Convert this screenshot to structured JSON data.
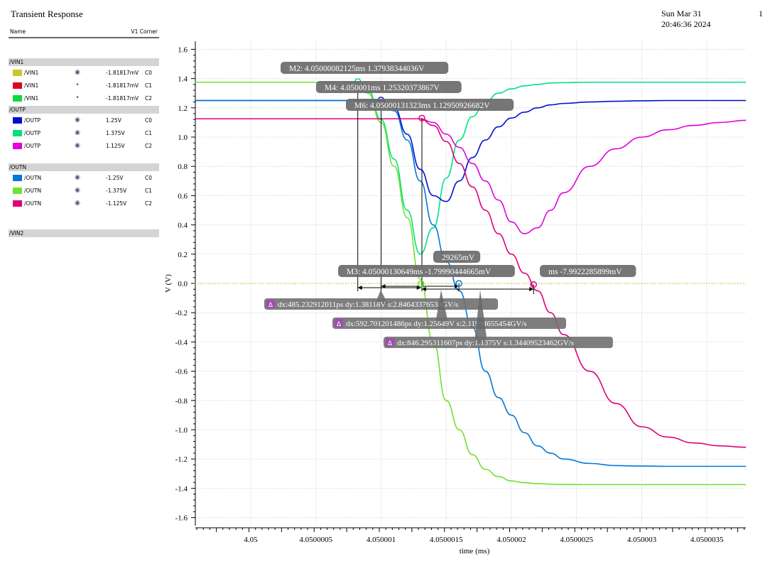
{
  "header": {
    "title": "Transient Response",
    "date": "Sun Mar 31 20:46:36 2024",
    "page": "1"
  },
  "legend_panel": {
    "col_name": "Name",
    "col_corner": "V1 Corner",
    "groups": [
      {
        "name": "/VIN1",
        "rows": [
          {
            "label": "/VIN1",
            "color": "#c8c832",
            "vis": "eye",
            "value": "-1.81817mV",
            "corner": "C0"
          },
          {
            "label": "/VIN1",
            "color": "#e00020",
            "vis": "dot",
            "value": "-1.81817mV",
            "corner": "C1"
          },
          {
            "label": "/VIN1",
            "color": "#10d840",
            "vis": "dot",
            "value": "-1.81817mV",
            "corner": "C2"
          }
        ]
      },
      {
        "name": "/OUTP",
        "rows": [
          {
            "label": "/OUTP",
            "color": "#0010d0",
            "vis": "eye",
            "value": "1.25V",
            "corner": "C0"
          },
          {
            "label": "/OUTP",
            "color": "#00e080",
            "vis": "eye",
            "value": "1.375V",
            "corner": "C1"
          },
          {
            "label": "/OUTP",
            "color": "#e000e0",
            "vis": "eye",
            "value": "1.125V",
            "corner": "C2"
          }
        ]
      },
      {
        "name": "/OUTN",
        "rows": [
          {
            "label": "/OUTN",
            "color": "#0078d8",
            "vis": "eye",
            "value": "-1.25V",
            "corner": "C0"
          },
          {
            "label": "/OUTN",
            "color": "#70e030",
            "vis": "eye",
            "value": "-1.375V",
            "corner": "C1"
          },
          {
            "label": "/OUTN",
            "color": "#e0007a",
            "vis": "eye",
            "value": "-1.125V",
            "corner": "C2"
          }
        ]
      },
      {
        "name": "/VIN2",
        "rows": []
      }
    ]
  },
  "chart_data": {
    "type": "line",
    "xlabel": "time (ms)",
    "ylabel": "V (V)",
    "xlim": [
      4.04999957,
      4.0500038
    ],
    "ylim": [
      -1.7,
      1.65
    ],
    "grid": true,
    "xticks": [
      "4.05",
      "4.0500005",
      "4.050001",
      "4.0500015",
      "4.050002",
      "4.0500025",
      "4.050003",
      "4.0500035"
    ],
    "yticks": [
      "1.6",
      "1.4",
      "1.2",
      "1.0",
      "0.8",
      "0.6",
      "0.4",
      "0.2",
      "0.0",
      "-0.2",
      "-0.4",
      "-0.6",
      "-0.8",
      "-1.0",
      "-1.2",
      "-1.4",
      "-1.6"
    ],
    "x": [
      4.04999957,
      4.0500008,
      4.0500009,
      4.050001,
      4.0500011,
      4.0500012,
      4.0500013,
      4.0500014,
      4.0500015,
      4.0500016,
      4.0500017,
      4.0500018,
      4.0500019,
      4.050002,
      4.0500021,
      4.0500022,
      4.0500023,
      4.0500024,
      4.0500026,
      4.0500028,
      4.050003,
      4.0500032,
      4.0500034,
      4.0500036,
      4.0500038
    ],
    "series": [
      {
        "name": "/VIN1 C0",
        "color": "#c8c832",
        "dashed": true,
        "values": [
          0,
          0,
          0,
          0,
          0,
          0,
          0,
          0,
          0,
          0,
          0,
          0,
          0,
          0,
          0,
          0,
          0,
          0,
          0,
          0,
          0,
          0,
          0,
          0,
          0
        ]
      },
      {
        "name": "/OUTP C1",
        "color": "#00e080",
        "values": [
          1.375,
          1.375,
          1.32,
          1.12,
          0.85,
          0.5,
          0.2,
          0.38,
          0.72,
          0.98,
          1.14,
          1.24,
          1.3,
          1.33,
          1.35,
          1.36,
          1.37,
          1.372,
          1.375,
          1.375,
          1.375,
          1.375,
          1.375,
          1.375,
          1.375
        ]
      },
      {
        "name": "/OUTN C1",
        "color": "#70e030",
        "values": [
          1.375,
          1.375,
          1.3,
          1.1,
          0.8,
          0.45,
          0.03,
          -0.4,
          -0.8,
          -1.0,
          -1.17,
          -1.27,
          -1.32,
          -1.35,
          -1.362,
          -1.368,
          -1.372,
          -1.374,
          -1.375,
          -1.375,
          -1.375,
          -1.375,
          -1.375,
          -1.375,
          -1.375
        ]
      },
      {
        "name": "/OUTP C0",
        "color": "#0010d0",
        "values": [
          1.25,
          1.25,
          1.25,
          1.25,
          1.2,
          1.02,
          0.78,
          0.6,
          0.56,
          0.7,
          0.86,
          0.98,
          1.07,
          1.13,
          1.17,
          1.2,
          1.22,
          1.23,
          1.24,
          1.245,
          1.248,
          1.25,
          1.25,
          1.25,
          1.25
        ]
      },
      {
        "name": "/OUTN C0",
        "color": "#0078d8",
        "values": [
          1.25,
          1.25,
          1.25,
          1.25,
          1.18,
          0.98,
          0.7,
          0.4,
          0.15,
          -0.05,
          -0.3,
          -0.6,
          -0.78,
          -0.9,
          -1.02,
          -1.11,
          -1.16,
          -1.2,
          -1.23,
          -1.245,
          -1.248,
          -1.25,
          -1.25,
          -1.25,
          -1.25
        ]
      },
      {
        "name": "/OUTP C2",
        "color": "#e000e0",
        "values": [
          1.125,
          1.125,
          1.125,
          1.125,
          1.125,
          1.125,
          1.125,
          1.1,
          1.02,
          0.93,
          0.82,
          0.7,
          0.57,
          0.42,
          0.34,
          0.38,
          0.5,
          0.62,
          0.8,
          0.92,
          1.0,
          1.05,
          1.08,
          1.1,
          1.115
        ]
      },
      {
        "name": "/OUTN C2",
        "color": "#e0007a",
        "values": [
          1.125,
          1.125,
          1.125,
          1.125,
          1.125,
          1.125,
          1.125,
          1.08,
          0.97,
          0.82,
          0.66,
          0.5,
          0.34,
          0.2,
          0.07,
          -0.05,
          -0.2,
          -0.35,
          -0.6,
          -0.82,
          -0.98,
          -1.05,
          -1.09,
          -1.11,
          -1.12
        ]
      }
    ],
    "markers": [
      {
        "label": "M2: 4.05000082125ms 1.37938344036V",
        "x": 4.05000082125,
        "y": 1.37938344036,
        "color": "#00e080"
      },
      {
        "label": "M4: 4.050001ms 1.25320373867V",
        "x": 4.050001,
        "y": 1.25320373867,
        "color": "#0010d0"
      },
      {
        "label": "M6: 4.05000131323ms 1.12950926682V",
        "x": 4.05000131323,
        "y": 1.12950926682,
        "color": "#e0007a"
      },
      {
        "label": "ms -7.9922285899mV",
        "x": 4.05000217,
        "y": -0.0079922285899,
        "color": "#e0007a"
      },
      {
        "label": "29265mV",
        "x": 4.050001597,
        "y": 0,
        "color": "#0078d8"
      },
      {
        "label": "M3: 4.05000130649ms -1.79990444665mV",
        "x": 4.05000130649,
        "y": -0.00179990444665,
        "color": "#70e030"
      }
    ],
    "deltas": [
      {
        "label": "dx:485.232912011ps dy:1.38118V s:2.84643376534GV/s"
      },
      {
        "label": "dx:592.701201486ps dy:1.25649V s:2.11994655454GV/s"
      },
      {
        "label": "dx:846.295311607ps dy:1.1375V s:1.34409523462GV/s"
      }
    ]
  }
}
